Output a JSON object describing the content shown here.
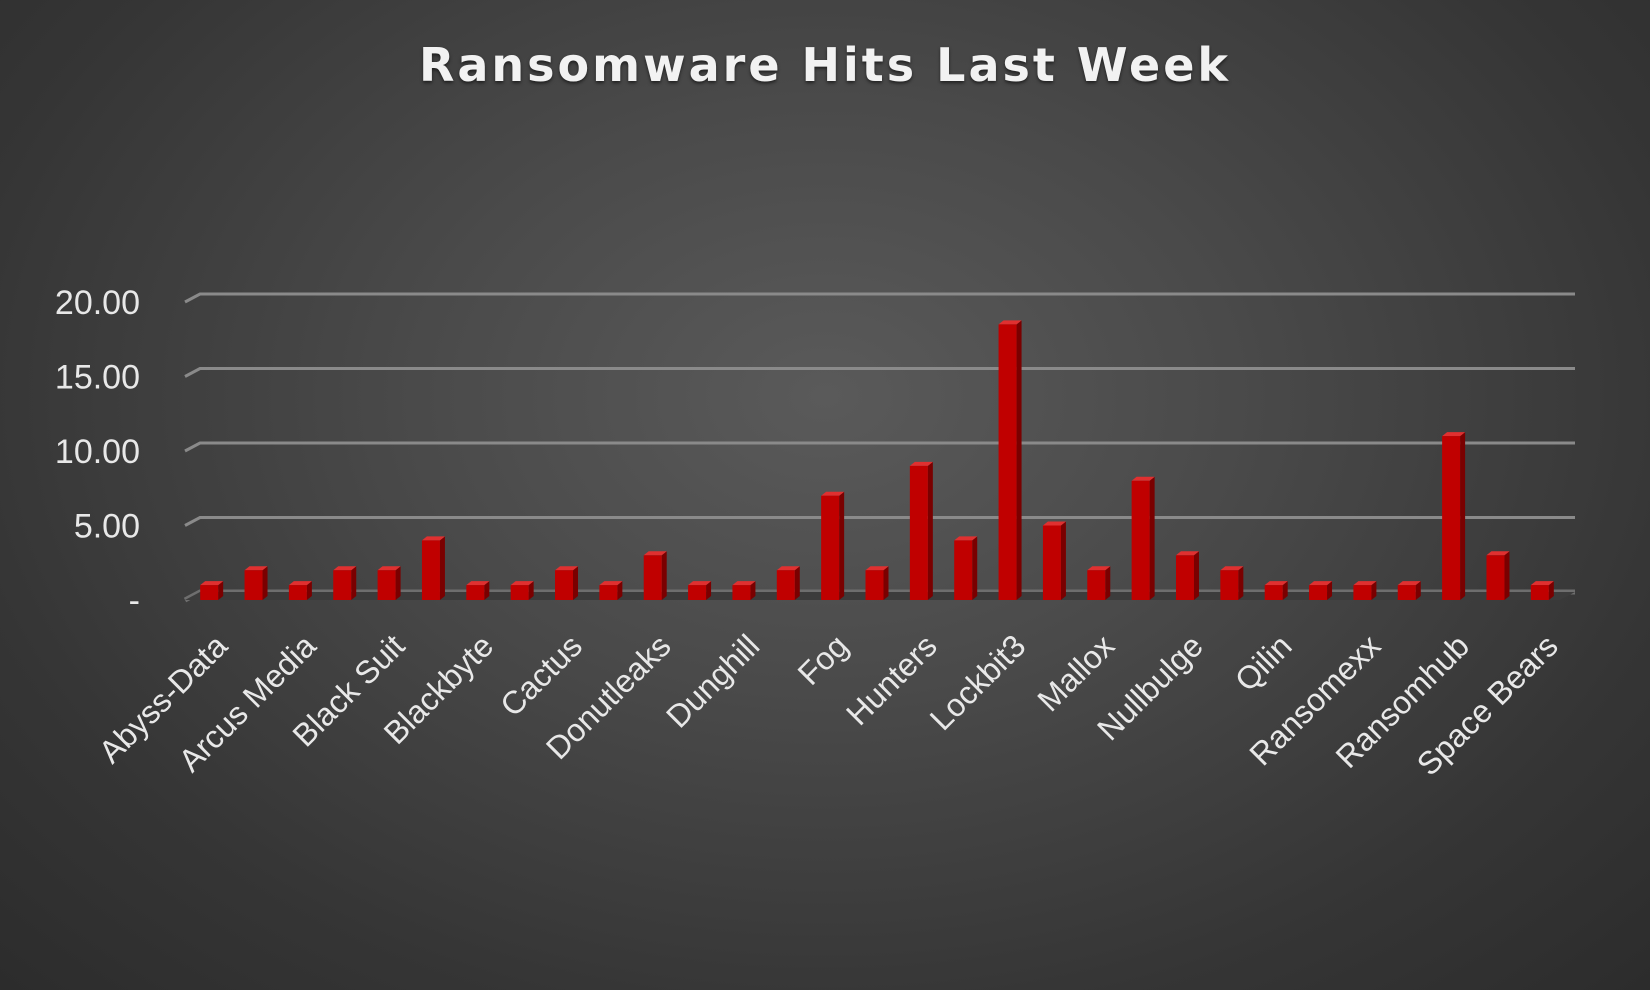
{
  "colors": {
    "bar": "#c00000",
    "bar_side": "#7a0000",
    "bar_top": "#e03030",
    "gridline": "#8a8a8a",
    "text": "#e8e8e8"
  },
  "chart_data": {
    "type": "bar",
    "title": "Ransomware Hits Last Week",
    "xlabel": "",
    "ylabel": "",
    "ylim": [
      0,
      20
    ],
    "yticks": [
      0,
      5,
      10,
      15,
      20
    ],
    "ytick_labels": [
      "-",
      "5.00",
      "10.00",
      "15.00",
      "20.00"
    ],
    "grid": true,
    "categories": [
      "Abyss-Data",
      "",
      "Arcus Media",
      "",
      "Black Suit",
      "",
      "Blackbyte",
      "",
      "Cactus",
      "",
      "Donutleaks",
      "",
      "Dunghill",
      "",
      "Fog",
      "",
      "Hunters",
      "",
      "Lockbit3",
      "",
      "Mallox",
      "",
      "Nullbulge",
      "",
      "Qilin",
      "",
      "Ransomexx",
      "",
      "Ransomhub",
      "",
      "Space Bears"
    ],
    "values": [
      1,
      2,
      1,
      2,
      2,
      4,
      1,
      1,
      2,
      1,
      3,
      1,
      1,
      2,
      7,
      2,
      9,
      4,
      18.5,
      5,
      2,
      8,
      3,
      2,
      1,
      1,
      1,
      1,
      11,
      3,
      1
    ]
  }
}
